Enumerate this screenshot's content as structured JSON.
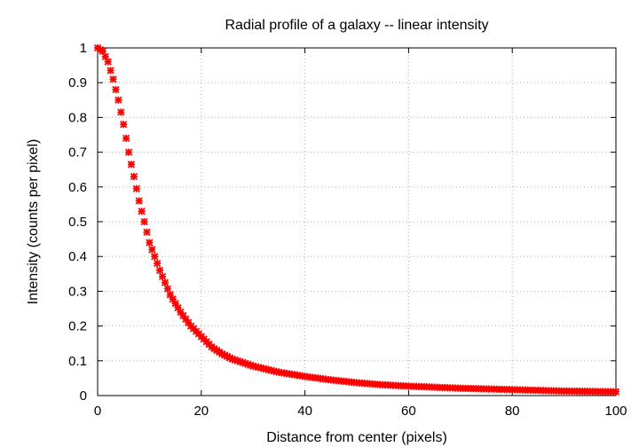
{
  "chart_data": {
    "type": "scatter",
    "title": "Radial profile of a galaxy -- linear intensity",
    "xlabel": "Distance from center (pixels)",
    "ylabel": "Intensity (counts per pixel)",
    "xlim": [
      0,
      100
    ],
    "ylim": [
      0,
      1
    ],
    "xticks": [
      "0",
      "20",
      "40",
      "60",
      "80",
      "100"
    ],
    "yticks": [
      "0",
      "0.1",
      "0.2",
      "0.3",
      "0.4",
      "0.5",
      "0.6",
      "0.7",
      "0.8",
      "0.9",
      "1"
    ],
    "grid": true,
    "marker": "cross",
    "color": "#ff0000",
    "series": [
      {
        "x": [
          0,
          1,
          2,
          3,
          4,
          5,
          6,
          7,
          8,
          9,
          10,
          12,
          14,
          16,
          18,
          20,
          22,
          24,
          26,
          28,
          30,
          35,
          40,
          45,
          50,
          55,
          60,
          65,
          70,
          75,
          80,
          85,
          90,
          95,
          100
        ],
        "y": [
          1.0,
          0.99,
          0.96,
          0.91,
          0.85,
          0.78,
          0.7,
          0.63,
          0.56,
          0.5,
          0.44,
          0.36,
          0.29,
          0.24,
          0.2,
          0.17,
          0.14,
          0.12,
          0.105,
          0.095,
          0.085,
          0.067,
          0.055,
          0.045,
          0.037,
          0.031,
          0.027,
          0.024,
          0.021,
          0.019,
          0.017,
          0.015,
          0.013,
          0.012,
          0.011
        ]
      }
    ]
  }
}
